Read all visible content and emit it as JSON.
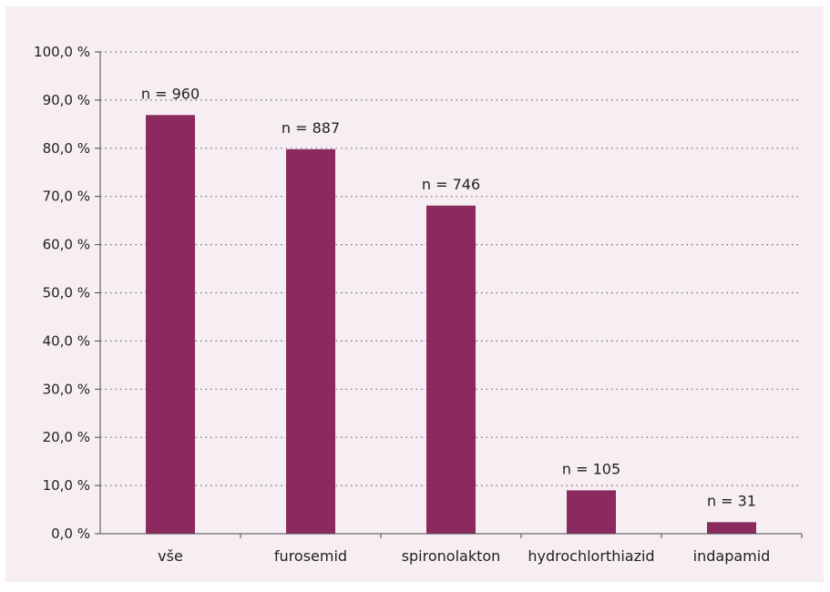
{
  "chart_data": {
    "type": "bar",
    "categories": [
      "vše",
      "furosemid",
      "spironolakton",
      "hydrochlorthiazid",
      "indapamid"
    ],
    "values": [
      86.9,
      79.8,
      68.1,
      9.0,
      2.4
    ],
    "data_labels": [
      "n = 960",
      "n = 887",
      "n = 746",
      "n = 105",
      "n = 31"
    ],
    "y_ticks": [
      "0,0 %",
      "10,0 %",
      "20,0 %",
      "30,0 %",
      "40,0 %",
      "50,0 %",
      "60,0 %",
      "70,0 %",
      "80,0 %",
      "90,0 %",
      "100,0 %"
    ],
    "ylim": [
      0,
      100
    ],
    "grid": "horizontal dotted",
    "bar_color": "#8b2a5e",
    "background_color": "#f6eef3"
  }
}
